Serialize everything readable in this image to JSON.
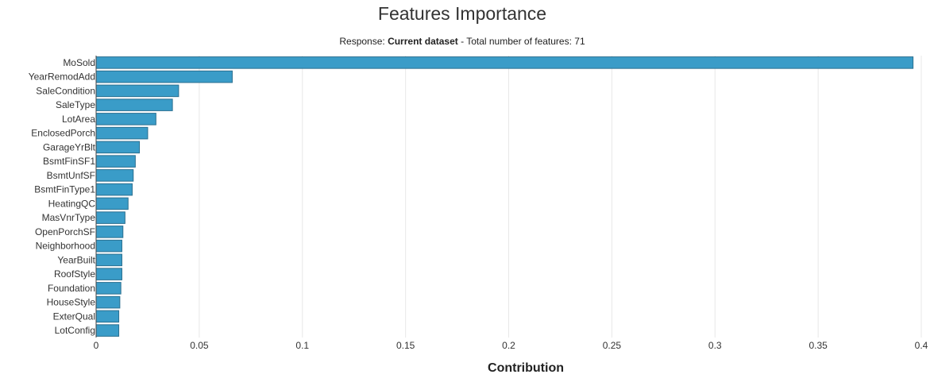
{
  "chart_data": {
    "type": "bar",
    "orientation": "horizontal",
    "title": "Features Importance",
    "subtitle": {
      "prefix": "Response: ",
      "dataset": "Current dataset",
      "suffix": " - Total number of features: 71"
    },
    "xlabel": "Contribution",
    "ylabel": "",
    "xlim": [
      0,
      0.4
    ],
    "xticks": [
      "0",
      "0.05",
      "0.1",
      "0.15",
      "0.2",
      "0.25",
      "0.3",
      "0.35",
      "0.4"
    ],
    "xtick_values": [
      0,
      0.05,
      0.1,
      0.15,
      0.2,
      0.25,
      0.3,
      0.35,
      0.4
    ],
    "grid": "vertical",
    "bar_color": "#3a9cc8",
    "bar_edge_color": "#2a6f8f",
    "categories": [
      "MoSold",
      "YearRemodAdd",
      "SaleCondition",
      "SaleType",
      "LotArea",
      "EnclosedPorch",
      "GarageYrBlt",
      "BsmtFinSF1",
      "BsmtUnfSF",
      "BsmtFinType1",
      "HeatingQC",
      "MasVnrType",
      "OpenPorchSF",
      "Neighborhood",
      "YearBuilt",
      "RoofStyle",
      "Foundation",
      "HouseStyle",
      "ExterQual",
      "LotConfig"
    ],
    "values": [
      0.396,
      0.066,
      0.04,
      0.037,
      0.029,
      0.025,
      0.021,
      0.019,
      0.018,
      0.0175,
      0.0155,
      0.014,
      0.013,
      0.0125,
      0.0125,
      0.0125,
      0.012,
      0.0115,
      0.011,
      0.011
    ]
  }
}
